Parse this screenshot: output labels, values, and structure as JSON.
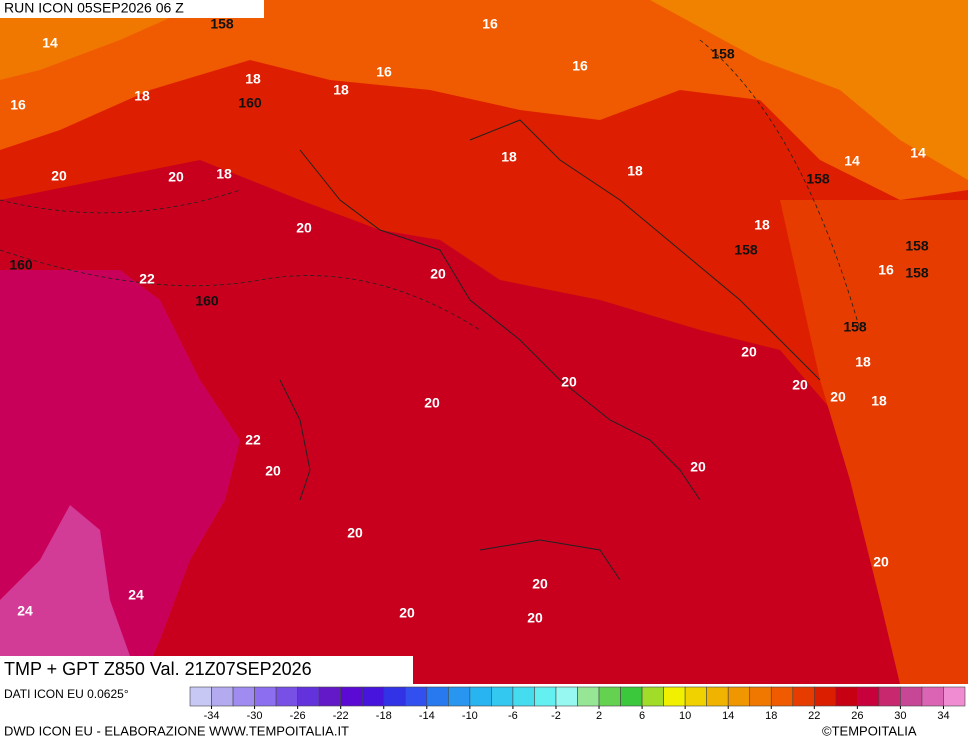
{
  "header": {
    "run": "RUN ICON 05SEP2026 06 Z"
  },
  "map": {
    "title": "TMP + GPT Z850 Val. 21Z07SEP2026",
    "temperature_labels": [
      14,
      16,
      18,
      16,
      16,
      18,
      16,
      18,
      18,
      18,
      14,
      14,
      20,
      20,
      18,
      20,
      18,
      16,
      22,
      20,
      20,
      18,
      20,
      20,
      20,
      18,
      20,
      22,
      20,
      20,
      20,
      20,
      20,
      24,
      24,
      20,
      20
    ],
    "geopotential_labels": [
      158,
      158,
      160,
      158,
      158,
      158,
      158,
      160,
      160,
      158
    ]
  },
  "legend": {
    "source": "DATI ICON EU 0.0625°",
    "lim": [
      -36,
      36
    ],
    "ticks": [
      -34,
      -30,
      -26,
      -22,
      -18,
      -14,
      -10,
      -6,
      -2,
      2,
      6,
      10,
      14,
      18,
      22,
      26,
      30,
      34
    ],
    "colors": [
      "#c8c8f5",
      "#b4aaf0",
      "#a08cf0",
      "#8c6ef0",
      "#7850e6",
      "#6432dc",
      "#6419c8",
      "#5a0ad2",
      "#4614dc",
      "#3232e6",
      "#3250f0",
      "#2878f0",
      "#2896f0",
      "#28b4f0",
      "#32c8f0",
      "#46dcf0",
      "#64f0f0",
      "#96f8f0",
      "#96e696",
      "#64d250",
      "#3cc83c",
      "#a0dc28",
      "#f0f000",
      "#f0d200",
      "#f0b400",
      "#f09600",
      "#f07800",
      "#f05a00",
      "#e63c00",
      "#dc1e00",
      "#c80014",
      "#c8003c",
      "#c8286e",
      "#c84696",
      "#dc64b4",
      "#f08cd2"
    ]
  },
  "footer": {
    "credit": "DWD ICON EU - ELABORAZIONE WWW.TEMPOITALIA.IT",
    "copyright": "©TEMPOITALIA"
  }
}
